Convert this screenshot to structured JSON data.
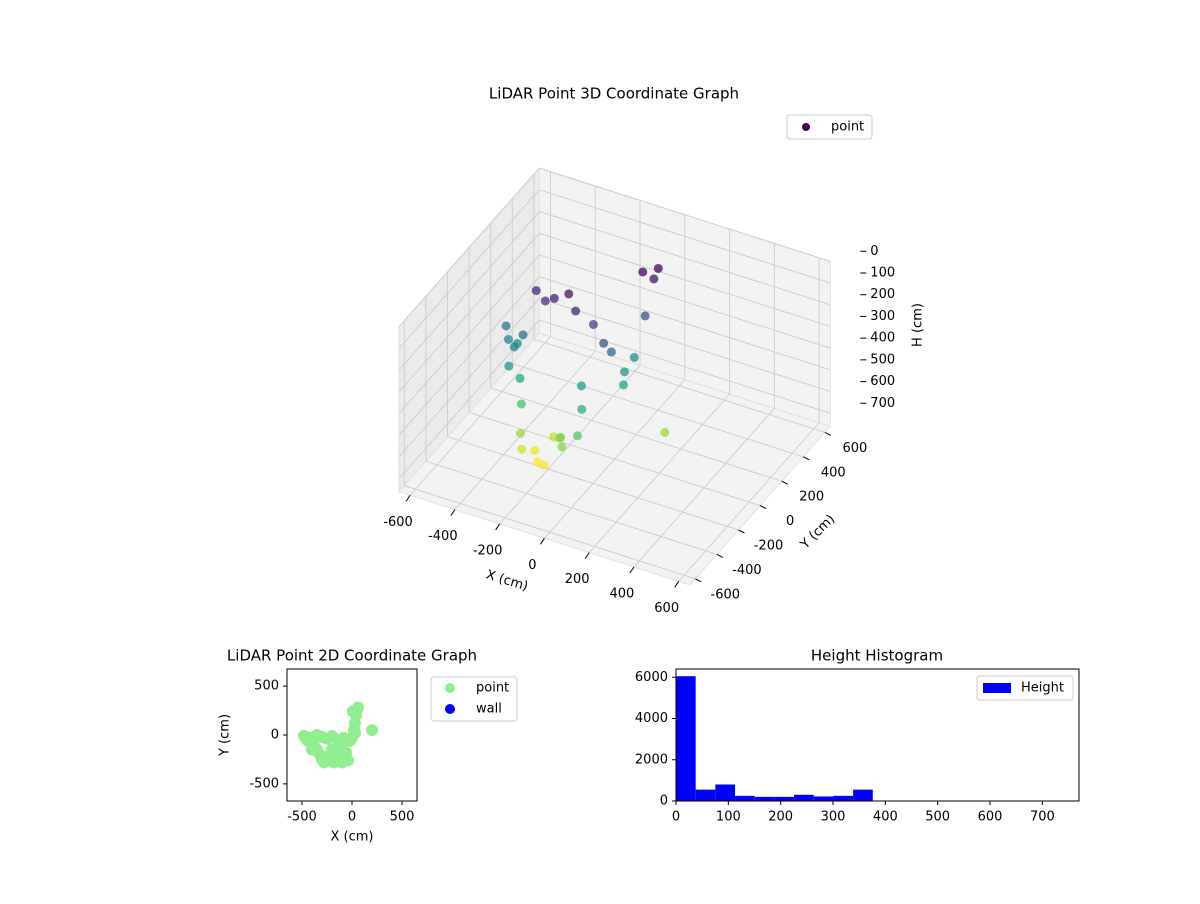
{
  "chart_data": [
    {
      "type": "scatter3d",
      "title": "LiDAR Point 3D Coordinate Graph",
      "x_label": "X (cm)",
      "y_label": "Y (cm)",
      "z_label": "H (cm)",
      "xlim": [
        -650,
        650
      ],
      "ylim": [
        -650,
        650
      ],
      "zlim": [
        0,
        760
      ],
      "z_inverted": true,
      "xticks": [
        -600,
        -400,
        -200,
        0,
        200,
        400,
        600
      ],
      "yticks": [
        -600,
        -400,
        -200,
        0,
        200,
        400,
        600
      ],
      "zticks": [
        0,
        100,
        200,
        300,
        400,
        500,
        600,
        700
      ],
      "colormap": "viridis",
      "grid": true,
      "legend": "upper right",
      "series": [
        {
          "name": "point",
          "color": "#440154",
          "x": [
            -480,
            -450,
            -420,
            -400,
            -380,
            -350,
            -320,
            -300,
            -280,
            -250,
            -220,
            -200,
            -180,
            -150,
            -120,
            -100,
            -80,
            -60,
            -40,
            -20,
            -300,
            -350,
            -250,
            -200,
            -150,
            0,
            20,
            30,
            40,
            50,
            10,
            60,
            30,
            200,
            -100,
            -400
          ],
          "y": [
            -10,
            -50,
            -30,
            -100,
            -60,
            -150,
            -200,
            -250,
            -280,
            -220,
            -260,
            -150,
            -280,
            -200,
            -250,
            -100,
            -30,
            -180,
            -260,
            -60,
            -20,
            0,
            -40,
            -10,
            -50,
            -30,
            50,
            120,
            200,
            260,
            240,
            280,
            20,
            50,
            -280,
            -150
          ],
          "z": [
            300,
            330,
            350,
            320,
            280,
            420,
            500,
            600,
            650,
            680,
            700,
            640,
            690,
            600,
            560,
            400,
            150,
            450,
            520,
            200,
            120,
            100,
            80,
            60,
            100,
            250,
            380,
            350,
            200,
            60,
            30,
            20,
            420,
            600,
            580,
            380
          ]
        }
      ]
    },
    {
      "type": "scatter",
      "title": "LiDAR Point 2D Coordinate Graph",
      "x_label": "X (cm)",
      "y_label": "Y (cm)",
      "xlim": [
        -650,
        650
      ],
      "ylim": [
        -675,
        675
      ],
      "xticks": [
        -500,
        0,
        500
      ],
      "yticks": [
        -500,
        0,
        500
      ],
      "legend": "outside right",
      "series": [
        {
          "name": "point",
          "color": "#90ee90",
          "x": [
            -480,
            -450,
            -420,
            -400,
            -380,
            -350,
            -320,
            -300,
            -280,
            -250,
            -220,
            -200,
            -180,
            -150,
            -120,
            -100,
            -80,
            -60,
            -40,
            -20,
            -300,
            -350,
            -250,
            -200,
            -150,
            0,
            20,
            30,
            40,
            50,
            10,
            60,
            30,
            200,
            -100,
            -400
          ],
          "y": [
            -10,
            -50,
            -30,
            -100,
            -60,
            -150,
            -200,
            -250,
            -280,
            -220,
            -260,
            -150,
            -280,
            -200,
            -250,
            -100,
            -30,
            -180,
            -260,
            -60,
            -20,
            0,
            -40,
            -10,
            -50,
            -30,
            50,
            120,
            200,
            260,
            240,
            280,
            20,
            50,
            -280,
            -150
          ]
        },
        {
          "name": "wall",
          "color": "#0000ff",
          "x": [],
          "y": []
        }
      ]
    },
    {
      "type": "histogram",
      "title": "Height Histogram",
      "bins": [
        0,
        37.6,
        75.2,
        112.8,
        150.4,
        188,
        225.6,
        263.2,
        300.8,
        338.4,
        376
      ],
      "series": [
        {
          "name": "Height",
          "color": "#0000ff",
          "values": [
            6050,
            550,
            800,
            250,
            200,
            200,
            300,
            220,
            250,
            550
          ]
        }
      ],
      "xlim": [
        0,
        770
      ],
      "ylim": [
        0,
        6400
      ],
      "xticks": [
        0,
        100,
        200,
        300,
        400,
        500,
        600,
        700
      ],
      "yticks": [
        0,
        2000,
        4000,
        6000
      ],
      "legend": "upper right"
    }
  ]
}
